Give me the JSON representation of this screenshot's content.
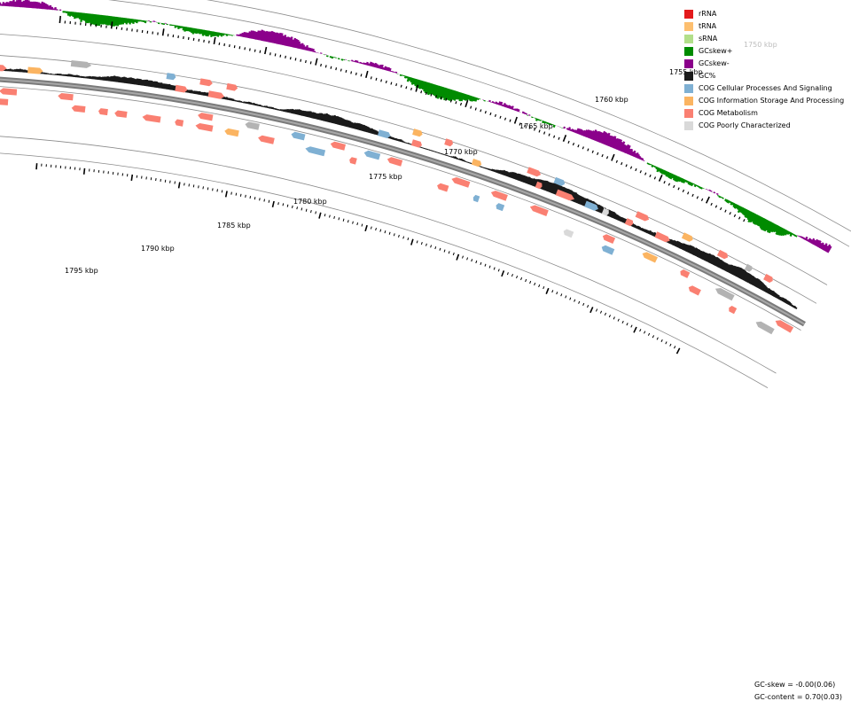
{
  "map": {
    "tick_labels": [
      "1750 kbp",
      "1755 kbp",
      "1760 kbp",
      "1765 kbp",
      "1770 kbp",
      "1775 kbp",
      "1780 kbp",
      "1785 kbp",
      "1790 kbp",
      "1795 kbp"
    ],
    "tick_label_faded": [
      true,
      false,
      false,
      false,
      false,
      false,
      false,
      false,
      false,
      false
    ]
  },
  "legend": {
    "items": [
      {
        "label": "rRNA",
        "color": "#e31a1c"
      },
      {
        "label": "tRNA",
        "color": "#fdbf6f"
      },
      {
        "label": "sRNA",
        "color": "#b2df8a"
      },
      {
        "label": "GCskew+",
        "color": "#008b00"
      },
      {
        "label": "GCskew-",
        "color": "#8b008b"
      },
      {
        "label": "GC%",
        "color": "#1a1a1a"
      },
      {
        "label": "COG Cellular Processes And Signaling",
        "color": "#7fb0d3"
      },
      {
        "label": "COG Information Storage And Processing",
        "color": "#fbb461"
      },
      {
        "label": "COG Metabolism",
        "color": "#fa8072"
      },
      {
        "label": "COG Poorly Characterized",
        "color": "#d9d9d9"
      }
    ]
  },
  "stats": {
    "gc_skew": "GC-skew = -0.00(0.06)",
    "gc_content": "GC-content = 0.70(0.03)"
  }
}
